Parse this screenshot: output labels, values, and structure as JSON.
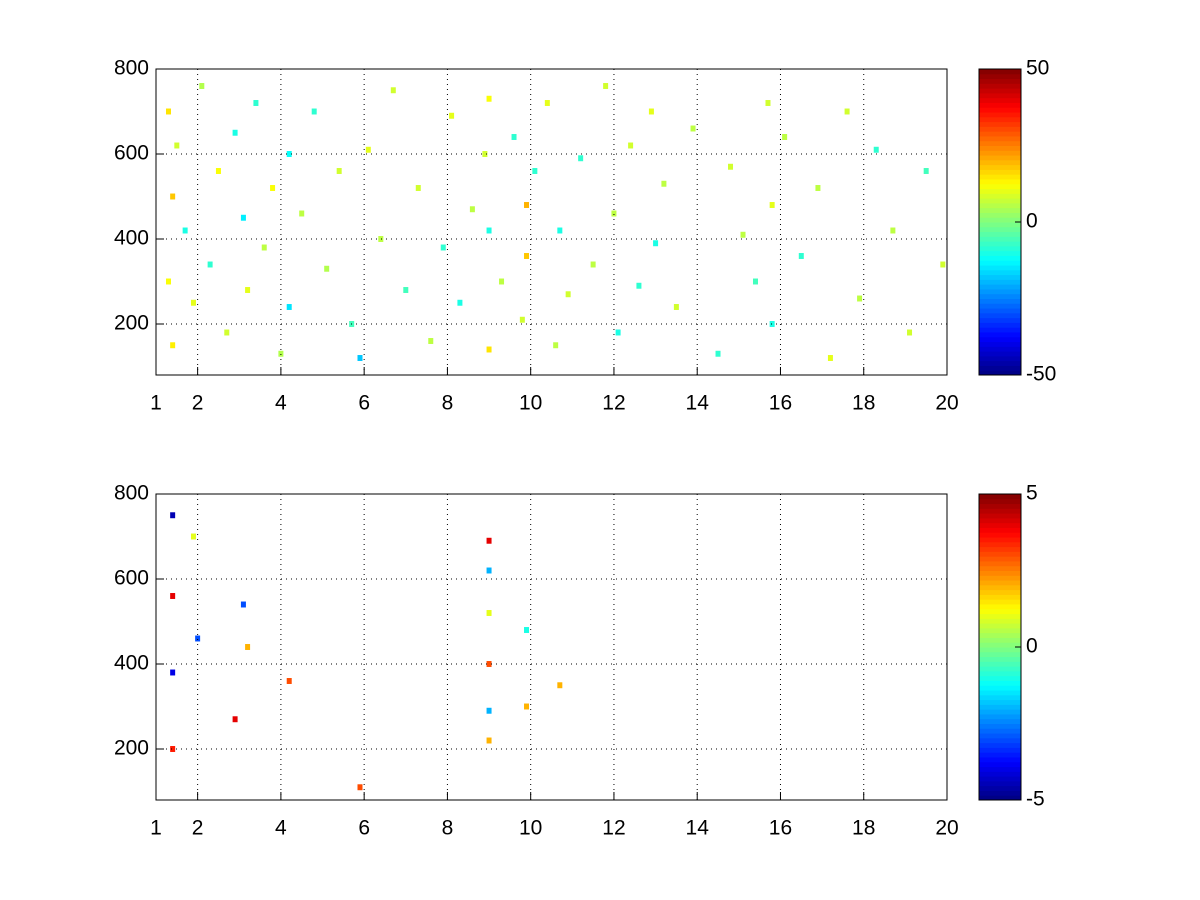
{
  "chart_data": [
    {
      "type": "heatmap",
      "colormap": "jet",
      "grid": true,
      "xlim": [
        1,
        20
      ],
      "xticks": [
        1,
        2,
        4,
        6,
        8,
        10,
        12,
        14,
        16,
        18,
        20
      ],
      "ylim": [
        80,
        800
      ],
      "yticks": [
        200,
        400,
        600,
        800
      ],
      "clim": [
        -50,
        50
      ],
      "cticks": [
        -50,
        0,
        50
      ],
      "x": [
        1.3,
        1.3,
        1.4,
        1.4,
        1.5,
        1.7,
        1.9,
        2.1,
        2.3,
        2.5,
        2.7,
        2.9,
        3.1,
        3.2,
        3.4,
        3.6,
        3.8,
        4.0,
        4.2,
        4.2,
        4.5,
        4.8,
        5.1,
        5.4,
        5.7,
        5.9,
        6.1,
        6.4,
        6.7,
        7.0,
        7.3,
        7.6,
        7.9,
        8.1,
        8.3,
        8.6,
        8.9,
        9.0,
        9.0,
        9.0,
        9.3,
        9.6,
        9.8,
        9.9,
        9.9,
        10.1,
        10.4,
        10.6,
        10.7,
        10.9,
        11.2,
        11.5,
        11.8,
        12.0,
        12.1,
        12.4,
        12.6,
        12.9,
        13.0,
        13.2,
        13.5,
        13.9,
        14.5,
        14.8,
        15.1,
        15.4,
        15.7,
        15.8,
        15.8,
        16.1,
        16.5,
        16.9,
        17.2,
        17.6,
        17.9,
        18.3,
        18.7,
        19.1,
        19.5,
        19.9
      ],
      "y": [
        700,
        300,
        500,
        150,
        620,
        420,
        250,
        760,
        340,
        560,
        180,
        650,
        450,
        280,
        720,
        380,
        520,
        130,
        600,
        240,
        460,
        700,
        330,
        560,
        200,
        120,
        610,
        400,
        750,
        280,
        520,
        160,
        380,
        690,
        250,
        470,
        600,
        140,
        420,
        730,
        300,
        640,
        210,
        480,
        360,
        560,
        720,
        150,
        420,
        270,
        590,
        340,
        760,
        460,
        180,
        620,
        290,
        700,
        390,
        530,
        240,
        660,
        130,
        570,
        410,
        300,
        720,
        480,
        200,
        640,
        360,
        520,
        120,
        700,
        260,
        610,
        420,
        180,
        560,
        340
      ],
      "values": [
        15,
        12,
        18,
        14,
        8,
        -10,
        10,
        5,
        -8,
        12,
        8,
        -10,
        -14,
        10,
        -8,
        6,
        12,
        5,
        -12,
        -15,
        6,
        -8,
        5,
        8,
        -6,
        -18,
        10,
        6,
        8,
        -6,
        8,
        6,
        -8,
        10,
        -10,
        6,
        8,
        15,
        -10,
        12,
        6,
        -8,
        8,
        20,
        18,
        -8,
        10,
        6,
        -10,
        8,
        -8,
        6,
        8,
        6,
        -10,
        8,
        -8,
        10,
        -10,
        6,
        8,
        6,
        -8,
        8,
        6,
        -6,
        8,
        10,
        -10,
        6,
        -8,
        6,
        10,
        8,
        6,
        -8,
        6,
        8,
        -6,
        8
      ]
    },
    {
      "type": "heatmap",
      "colormap": "jet",
      "grid": true,
      "xlim": [
        1,
        20
      ],
      "xticks": [
        1,
        2,
        4,
        6,
        8,
        10,
        12,
        14,
        16,
        18,
        20
      ],
      "ylim": [
        80,
        800
      ],
      "yticks": [
        200,
        400,
        600,
        800
      ],
      "clim": [
        -5,
        5
      ],
      "cticks": [
        -5,
        0,
        5
      ],
      "x": [
        1.4,
        1.4,
        1.4,
        1.4,
        1.9,
        2.0,
        2.9,
        3.1,
        3.2,
        4.2,
        5.9,
        9.0,
        9.0,
        9.0,
        9.0,
        9.0,
        9.0,
        9.9,
        9.9,
        10.7
      ],
      "y": [
        750,
        560,
        380,
        200,
        700,
        460,
        270,
        540,
        440,
        360,
        110,
        690,
        620,
        520,
        400,
        290,
        220,
        480,
        300,
        350
      ],
      "values": [
        -4.5,
        4,
        -4,
        3.5,
        1,
        -3,
        4,
        -3,
        2,
        3,
        3,
        4,
        -2,
        1,
        3,
        -2,
        2,
        -1,
        2,
        2
      ]
    }
  ]
}
